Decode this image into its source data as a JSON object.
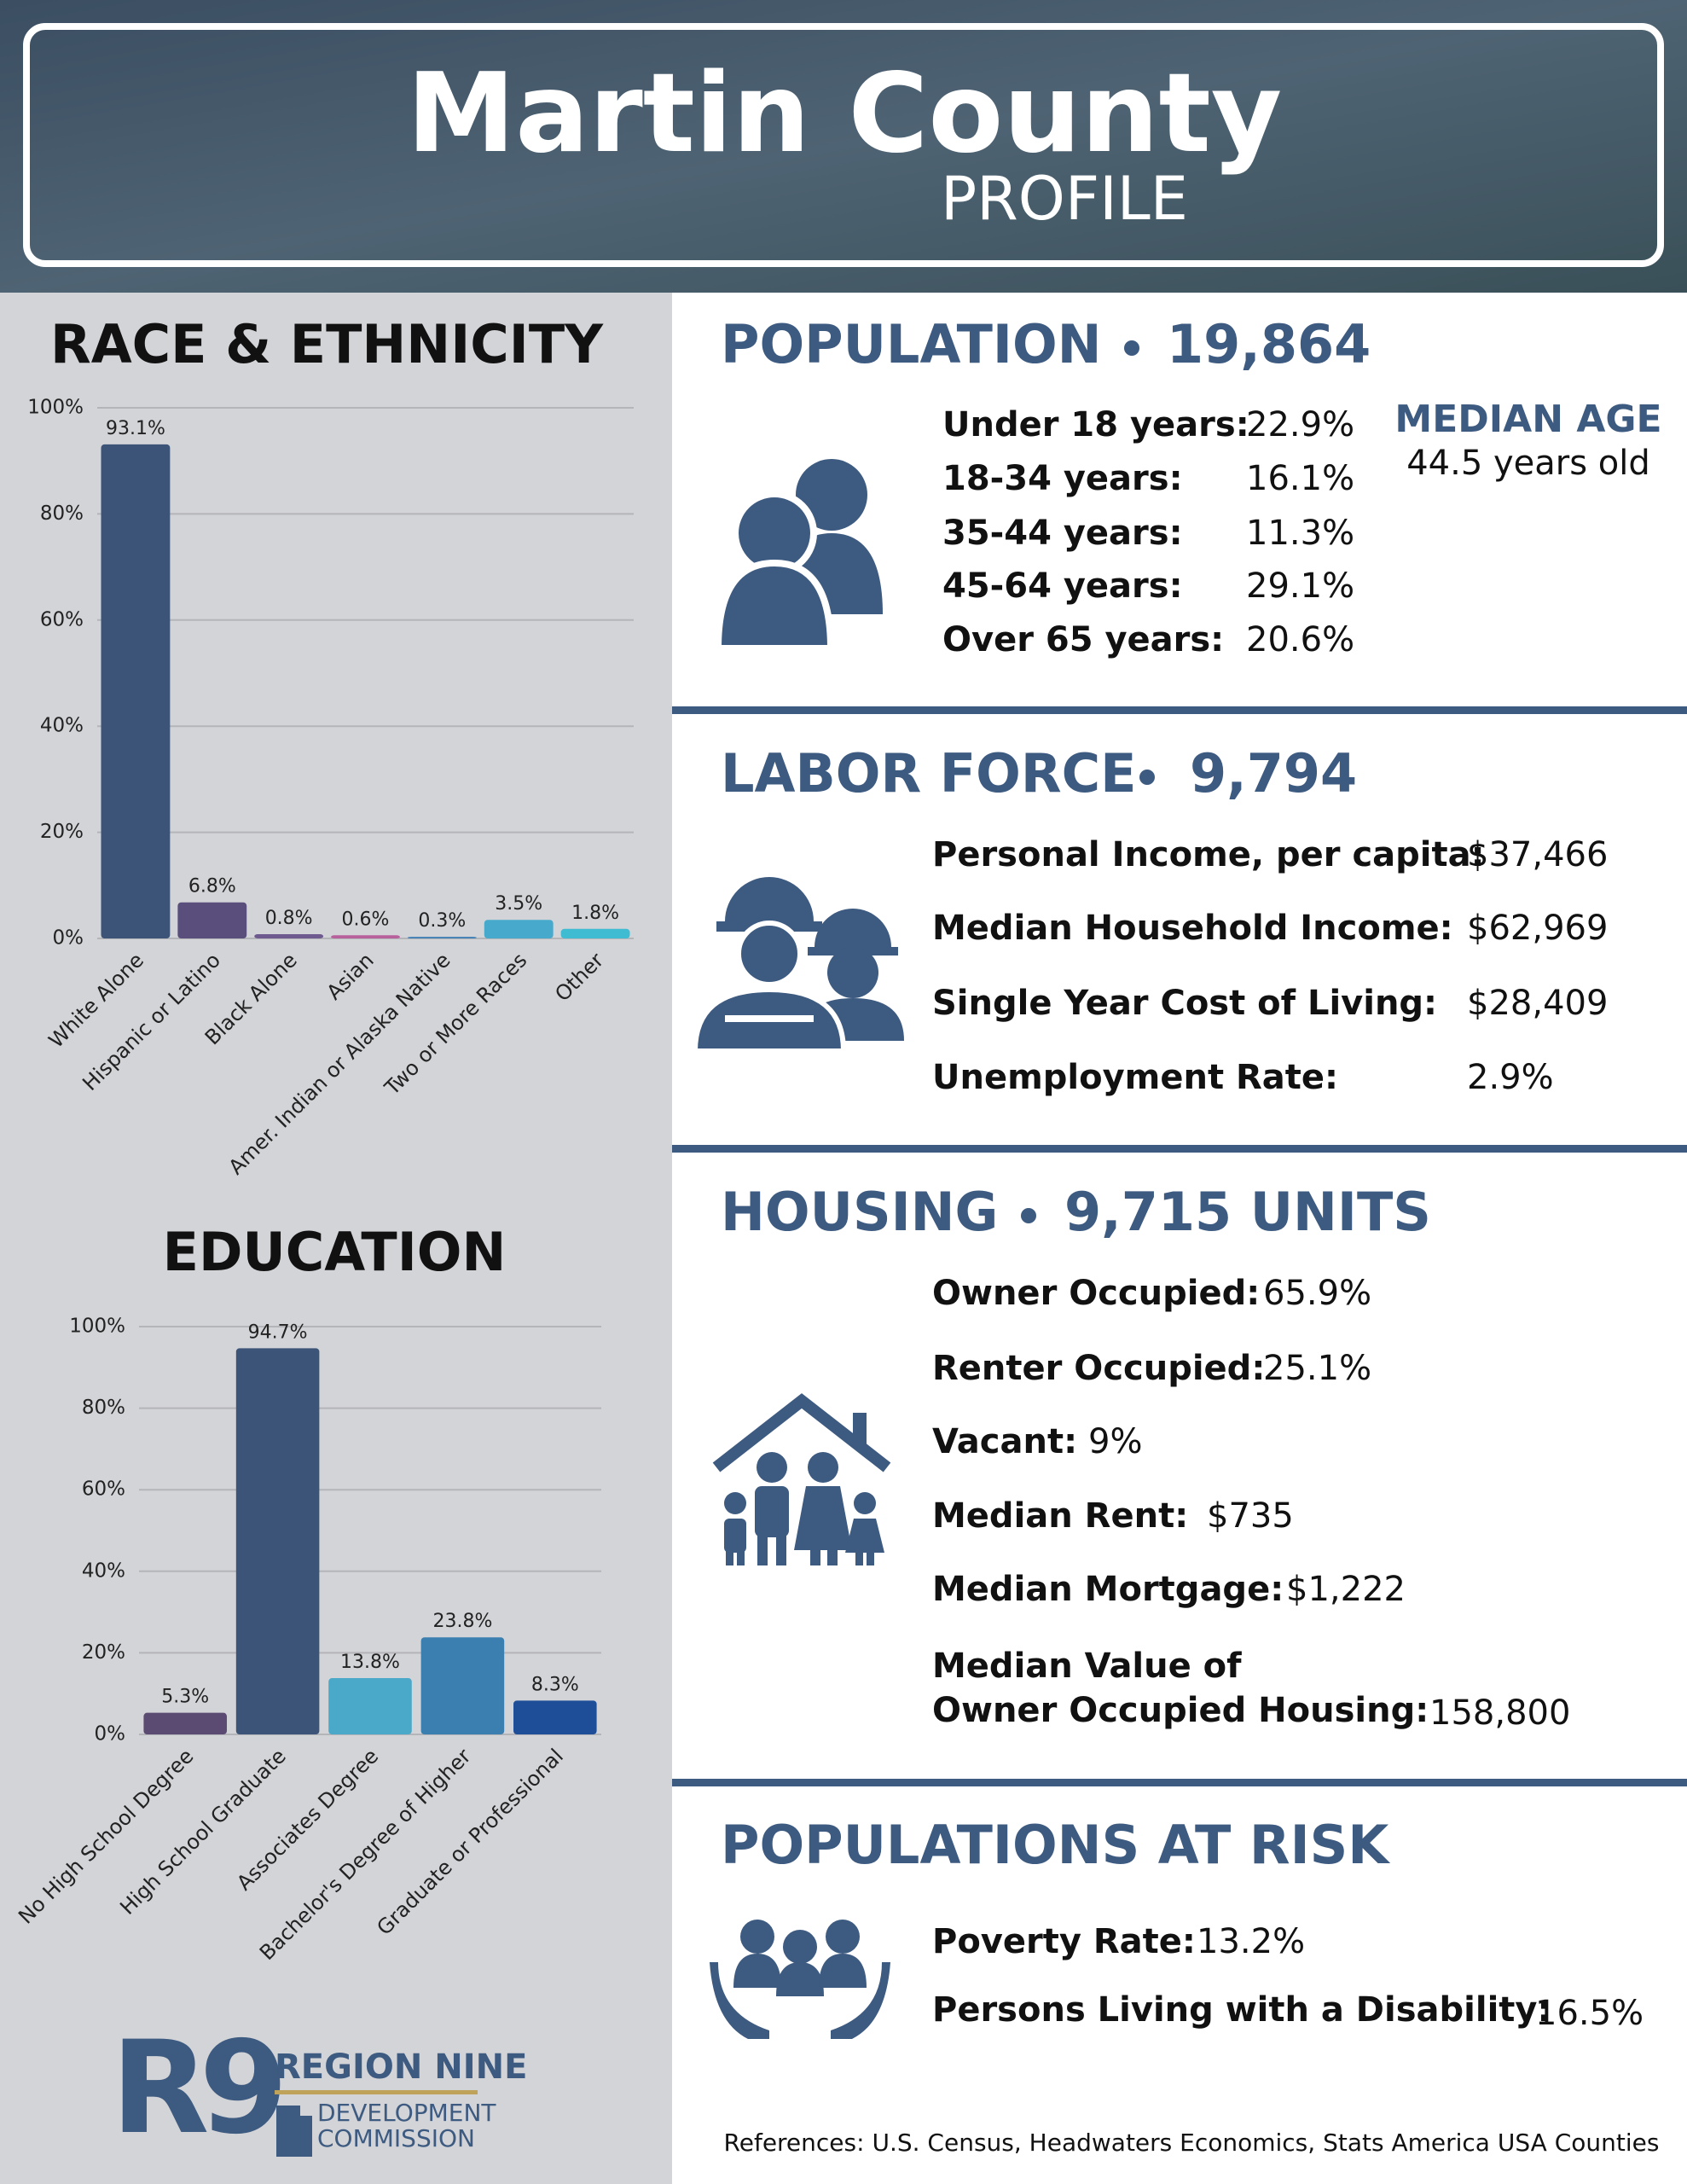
{
  "header": {
    "title": "Martin County",
    "subtitle": "PROFILE"
  },
  "chart_data": [
    {
      "type": "bar",
      "title": "RACE & ETHNICITY",
      "categories": [
        "White Alone",
        "Hispanic or Latino",
        "Black Alone",
        "Asian",
        "Amer. Indian or Alaska Native",
        "Two or More Races",
        "Other"
      ],
      "values": [
        93.1,
        6.8,
        0.8,
        0.6,
        0.3,
        3.5,
        1.8
      ],
      "value_labels": [
        "93.1%",
        "6.8%",
        "0.8%",
        "0.6%",
        "0.3%",
        "3.5%",
        "1.8%"
      ],
      "colors": [
        "#3b5478",
        "#5a4f7c",
        "#6e5a8e",
        "#b8609c",
        "#3f7fb5",
        "#47a9cb",
        "#3fbcd2"
      ],
      "ylim": [
        0,
        100
      ],
      "yticks": [
        {
          "value": 0,
          "label": "0%"
        },
        {
          "value": 20,
          "label": "20%"
        },
        {
          "value": 40,
          "label": "40%"
        },
        {
          "value": 60,
          "label": "60%"
        },
        {
          "value": 80,
          "label": "80%"
        },
        {
          "value": 100,
          "label": "100%"
        }
      ],
      "grid": true
    },
    {
      "type": "bar",
      "title": "EDUCATION",
      "categories": [
        "No High School Degree",
        "High School Graduate",
        "Associates Degree",
        "Bachelor's Degree of Higher",
        "Graduate or Professional"
      ],
      "values": [
        5.3,
        94.7,
        13.8,
        23.8,
        8.3
      ],
      "value_labels": [
        "5.3%",
        "94.7%",
        "13.8%",
        "23.8%",
        "8.3%"
      ],
      "colors": [
        "#5b4a72",
        "#3b5478",
        "#4aa8c8",
        "#3a7fb0",
        "#1f4e99"
      ],
      "ylim": [
        0,
        100
      ],
      "yticks": [
        {
          "value": 0,
          "label": "0%"
        },
        {
          "value": 20,
          "label": "20%"
        },
        {
          "value": 40,
          "label": "40%"
        },
        {
          "value": 60,
          "label": "60%"
        },
        {
          "value": 80,
          "label": "80%"
        },
        {
          "value": 100,
          "label": "100%"
        }
      ],
      "grid": true
    }
  ],
  "population": {
    "title": "POPULATION",
    "total": "19,864",
    "rows": [
      {
        "label": "Under 18 years:",
        "value": "22.9%"
      },
      {
        "label": "18-34 years:",
        "value": "16.1%"
      },
      {
        "label": "35-44 years:",
        "value": "11.3%"
      },
      {
        "label": "45-64 years:",
        "value": "29.1%"
      },
      {
        "label": "Over 65 years:",
        "value": "20.6%"
      }
    ],
    "median_age": {
      "label": "MEDIAN AGE",
      "value": "44.5 years old"
    }
  },
  "labor_force": {
    "title": "LABOR FORCE",
    "total": "9,794",
    "rows": [
      {
        "label": "Personal Income, per capita:",
        "value": "$37,466"
      },
      {
        "label": "Median Household Income:",
        "value": "$62,969"
      },
      {
        "label": "Single Year Cost of Living:",
        "value": "$28,409"
      },
      {
        "label": "Unemployment Rate:",
        "value": "2.9%"
      }
    ]
  },
  "housing": {
    "title": "HOUSING",
    "total": "9,715 UNITS",
    "rows": [
      {
        "label": "Owner Occupied:",
        "value": "65.9%"
      },
      {
        "label": "Renter Occupied:",
        "value": "25.1%"
      },
      {
        "label": "Vacant:",
        "value": "9%"
      },
      {
        "label": "Median Rent:",
        "value": "$735"
      },
      {
        "label": "Median Mortgage:",
        "value": "$1,222"
      }
    ],
    "median_value": {
      "label_line1": "Median Value of",
      "label_line2": "Owner Occupied Housing:",
      "value": "158,800"
    }
  },
  "at_risk": {
    "title": "POPULATIONS AT RISK",
    "rows": [
      {
        "label": "Poverty Rate:",
        "value": "13.2%"
      },
      {
        "label": "Persons Living with a Disability:",
        "value": "16.5%"
      }
    ]
  },
  "logo": {
    "mark": "R9",
    "name": "REGION NINE",
    "line1": "DEVELOPMENT",
    "line2": "COMMISSION"
  },
  "references": "References: U.S. Census, Headwaters Economics, Stats America USA Counties"
}
